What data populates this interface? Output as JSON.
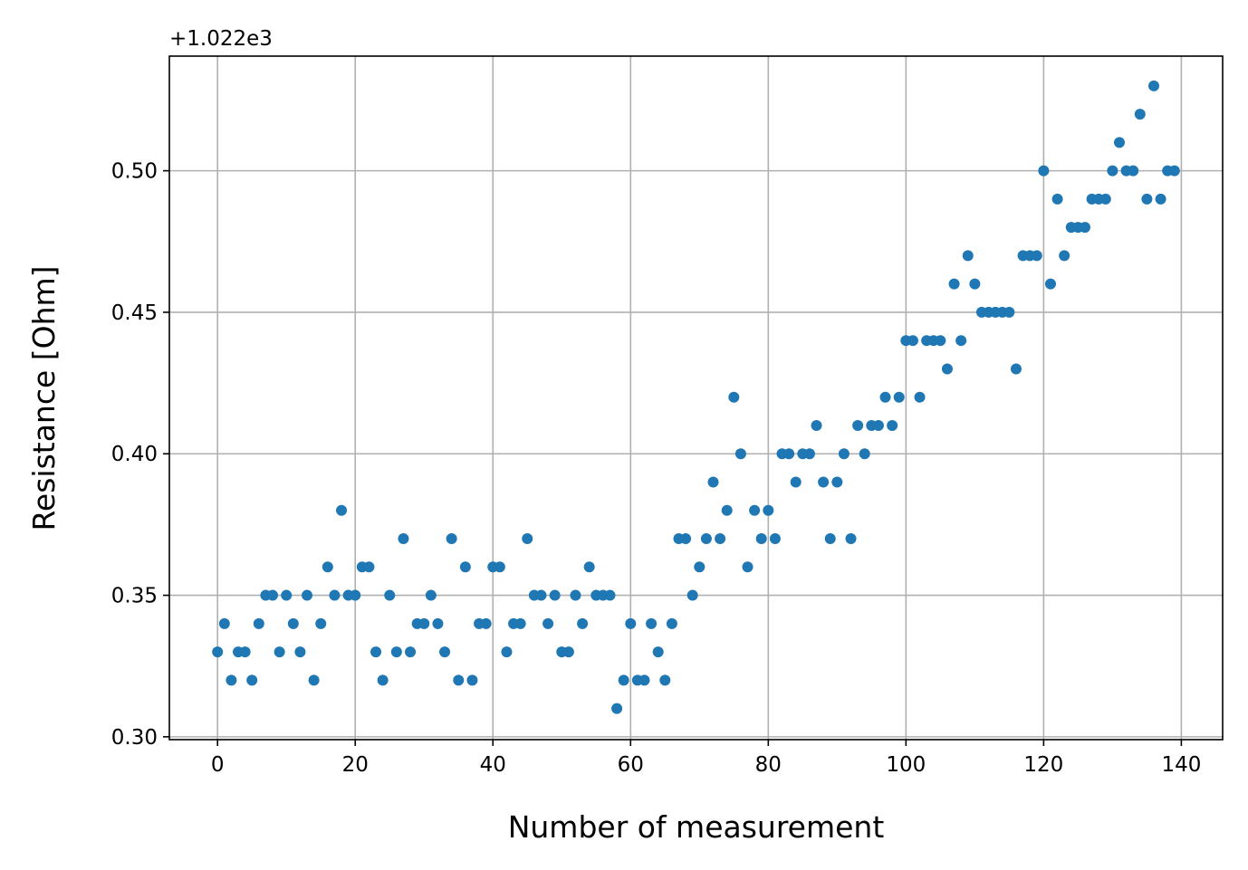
{
  "chart_data": {
    "type": "scatter",
    "title": "",
    "xlabel": "Number of measurement",
    "ylabel": "Resistance [Ohm]",
    "y_offset_label": "+1.022e3",
    "y_offset": 1022,
    "xlim": [
      -7,
      146
    ],
    "ylim": [
      0.299,
      0.5405
    ],
    "xticks": [
      0,
      20,
      40,
      60,
      80,
      100,
      120,
      140
    ],
    "xtick_labels": [
      "0",
      "20",
      "40",
      "60",
      "80",
      "100",
      "120",
      "140"
    ],
    "yticks": [
      0.3,
      0.35,
      0.4,
      0.45,
      0.5
    ],
    "ytick_labels": [
      "0.30",
      "0.35",
      "0.40",
      "0.45",
      "0.50"
    ],
    "grid": true,
    "marker_color": "#1f77b4",
    "series": [
      {
        "x": [
          0,
          1,
          2,
          3,
          4,
          5,
          6,
          7,
          8,
          9,
          10,
          11,
          12,
          13,
          14,
          15,
          16,
          17,
          18,
          19,
          20,
          21,
          22,
          23,
          24,
          25,
          26,
          27,
          28,
          29,
          30,
          31,
          32,
          33,
          34,
          35,
          36,
          37,
          38,
          39,
          40,
          41,
          42,
          43,
          44,
          45,
          46,
          47,
          48,
          49,
          50,
          51,
          52,
          53,
          54,
          55,
          56,
          57,
          58,
          59,
          60,
          61,
          62,
          63,
          64,
          65,
          66,
          67,
          68,
          69,
          70,
          71,
          72,
          73,
          74,
          75,
          76,
          77,
          78,
          79,
          80,
          81,
          82,
          83,
          84,
          85,
          86,
          87,
          88,
          89,
          90,
          91,
          92,
          93,
          94,
          95,
          96,
          97,
          98,
          99,
          100,
          101,
          102,
          103,
          104,
          105,
          106,
          107,
          108,
          109,
          110,
          111,
          112,
          113,
          114,
          115,
          116,
          117,
          118,
          119,
          120,
          121,
          122,
          123,
          124,
          125,
          126,
          127,
          128,
          129,
          130,
          131,
          132,
          133,
          134,
          135,
          136,
          137,
          138,
          139
        ],
        "y": [
          0.33,
          0.34,
          0.32,
          0.33,
          0.33,
          0.32,
          0.34,
          0.35,
          0.35,
          0.33,
          0.35,
          0.34,
          0.33,
          0.35,
          0.32,
          0.34,
          0.36,
          0.35,
          0.38,
          0.35,
          0.35,
          0.36,
          0.36,
          0.33,
          0.32,
          0.35,
          0.33,
          0.37,
          0.33,
          0.34,
          0.34,
          0.35,
          0.34,
          0.33,
          0.37,
          0.32,
          0.36,
          0.32,
          0.34,
          0.34,
          0.36,
          0.36,
          0.33,
          0.34,
          0.34,
          0.37,
          0.35,
          0.35,
          0.34,
          0.35,
          0.33,
          0.33,
          0.35,
          0.34,
          0.36,
          0.35,
          0.35,
          0.35,
          0.31,
          0.32,
          0.34,
          0.32,
          0.32,
          0.34,
          0.33,
          0.32,
          0.34,
          0.37,
          0.37,
          0.35,
          0.36,
          0.37,
          0.39,
          0.37,
          0.38,
          0.42,
          0.4,
          0.36,
          0.38,
          0.37,
          0.38,
          0.37,
          0.4,
          0.4,
          0.39,
          0.4,
          0.4,
          0.41,
          0.39,
          0.37,
          0.39,
          0.4,
          0.37,
          0.41,
          0.4,
          0.41,
          0.41,
          0.42,
          0.41,
          0.42,
          0.44,
          0.44,
          0.42,
          0.44,
          0.44,
          0.44,
          0.43,
          0.46,
          0.44,
          0.47,
          0.46,
          0.45,
          0.45,
          0.45,
          0.45,
          0.45,
          0.43,
          0.47,
          0.47,
          0.47,
          0.5,
          0.46,
          0.49,
          0.47,
          0.48,
          0.48,
          0.48,
          0.49,
          0.49,
          0.49,
          0.5,
          0.51,
          0.5,
          0.5,
          0.52,
          0.49,
          0.53,
          0.49,
          0.5,
          0.5
        ]
      }
    ]
  }
}
